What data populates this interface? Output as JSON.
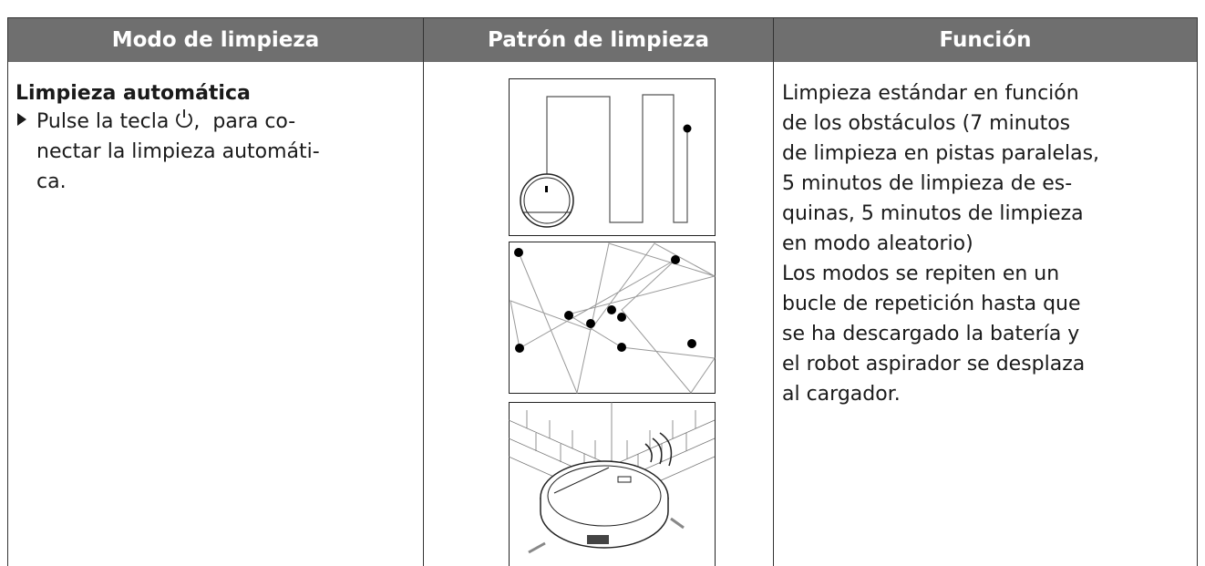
{
  "table": {
    "headers": [
      "Modo de limpieza",
      "Patrón de limpieza",
      "Función"
    ],
    "mode": {
      "title": "Limpieza automática",
      "step_before_icon": "Pulse la tecla",
      "step_after_icon": ",  para co-",
      "step_lines": [
        "nectar la limpieza automáti-",
        "ca."
      ]
    },
    "function_lines": [
      "Limpieza estándar en función",
      "de los obstáculos (7 minutos",
      "de limpieza en pistas paralelas,",
      "5 minutos de limpieza de es-",
      "quinas, 5 minutos de limpieza",
      "en modo aleatorio)",
      "Los modos se repiten en un",
      "bucle de repetición hasta que",
      "se ha descargado la batería y",
      "el robot aspirador se desplaza",
      "al cargador."
    ]
  }
}
